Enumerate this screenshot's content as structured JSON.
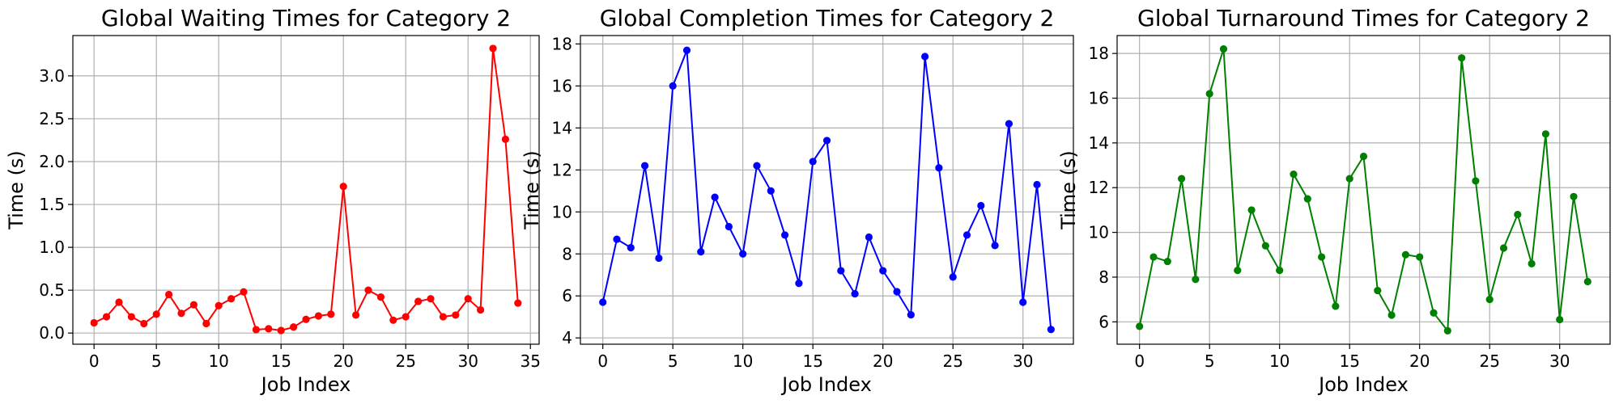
{
  "chart_data": [
    {
      "type": "line",
      "title": "Global Waiting Times for Category 2",
      "xlabel": "Job Index",
      "ylabel": "Time (s)",
      "xlim": [
        -1.7,
        35.7
      ],
      "ylim": [
        -0.13,
        3.47
      ],
      "xticks": [
        0,
        5,
        10,
        15,
        20,
        25,
        30,
        35
      ],
      "yticks": [
        0.0,
        0.5,
        1.0,
        1.5,
        2.0,
        2.5,
        3.0
      ],
      "ytick_labels": [
        "0.0",
        "0.5",
        "1.0",
        "1.5",
        "2.0",
        "2.5",
        "3.0"
      ],
      "grid": true,
      "color": "#ff0000",
      "x": [
        0,
        1,
        2,
        3,
        4,
        5,
        6,
        7,
        8,
        9,
        10,
        11,
        12,
        13,
        14,
        15,
        16,
        17,
        18,
        19,
        20,
        21,
        22,
        23,
        24,
        25,
        26,
        27,
        28,
        29,
        30,
        31,
        32,
        33,
        34
      ],
      "values": [
        0.12,
        0.19,
        0.36,
        0.19,
        0.11,
        0.22,
        0.45,
        0.23,
        0.33,
        0.11,
        0.32,
        0.4,
        0.48,
        0.04,
        0.05,
        0.03,
        0.07,
        0.16,
        0.2,
        0.22,
        1.71,
        0.21,
        0.5,
        0.42,
        0.15,
        0.19,
        0.37,
        0.4,
        0.19,
        0.21,
        0.4,
        0.27,
        3.32,
        2.26,
        0.35
      ]
    },
    {
      "type": "line",
      "title": "Global Completion Times for Category 2",
      "xlabel": "Job Index",
      "ylabel": "Time (s)",
      "xlim": [
        -1.6,
        33.6
      ],
      "ylim": [
        3.7,
        18.4
      ],
      "xticks": [
        0,
        5,
        10,
        15,
        20,
        25,
        30
      ],
      "yticks": [
        4,
        6,
        8,
        10,
        12,
        14,
        16,
        18
      ],
      "ytick_labels": [
        "4",
        "6",
        "8",
        "10",
        "12",
        "14",
        "16",
        "18"
      ],
      "grid": true,
      "color": "#0000ff",
      "x": [
        0,
        1,
        2,
        3,
        4,
        5,
        6,
        7,
        8,
        9,
        10,
        11,
        12,
        13,
        14,
        15,
        16,
        17,
        18,
        19,
        20,
        21,
        22,
        23,
        24,
        25,
        26,
        27,
        28,
        29,
        30,
        31,
        32
      ],
      "values": [
        5.7,
        8.7,
        8.3,
        12.2,
        7.8,
        16.0,
        17.7,
        8.1,
        10.7,
        9.3,
        8.0,
        12.2,
        11.0,
        8.9,
        6.6,
        12.4,
        13.4,
        7.2,
        6.1,
        8.8,
        7.2,
        6.2,
        5.1,
        17.4,
        12.1,
        6.9,
        8.9,
        10.3,
        8.4,
        14.2,
        5.7,
        11.3,
        4.4
      ]
    },
    {
      "type": "line",
      "title": "Global Turnaround Times for Category 2",
      "xlabel": "Job Index",
      "ylabel": "Time (s)",
      "xlim": [
        -1.6,
        33.6
      ],
      "ylim": [
        5.0,
        18.8
      ],
      "xticks": [
        0,
        5,
        10,
        15,
        20,
        25,
        30
      ],
      "yticks": [
        6,
        8,
        10,
        12,
        14,
        16,
        18
      ],
      "ytick_labels": [
        "6",
        "8",
        "10",
        "12",
        "14",
        "16",
        "18"
      ],
      "grid": true,
      "color": "#008000",
      "x": [
        0,
        1,
        2,
        3,
        4,
        5,
        6,
        7,
        8,
        9,
        10,
        11,
        12,
        13,
        14,
        15,
        16,
        17,
        18,
        19,
        20,
        21,
        22,
        23,
        24,
        25,
        26,
        27,
        28,
        29,
        30,
        31,
        32
      ],
      "values": [
        5.8,
        8.9,
        8.7,
        12.4,
        7.9,
        16.2,
        18.2,
        8.3,
        11.0,
        9.4,
        8.3,
        12.6,
        11.5,
        8.9,
        6.7,
        12.4,
        13.4,
        7.4,
        6.3,
        9.0,
        8.9,
        6.4,
        5.6,
        17.8,
        12.3,
        7.0,
        9.3,
        10.8,
        8.6,
        14.4,
        6.1,
        11.6,
        7.8
      ]
    }
  ]
}
